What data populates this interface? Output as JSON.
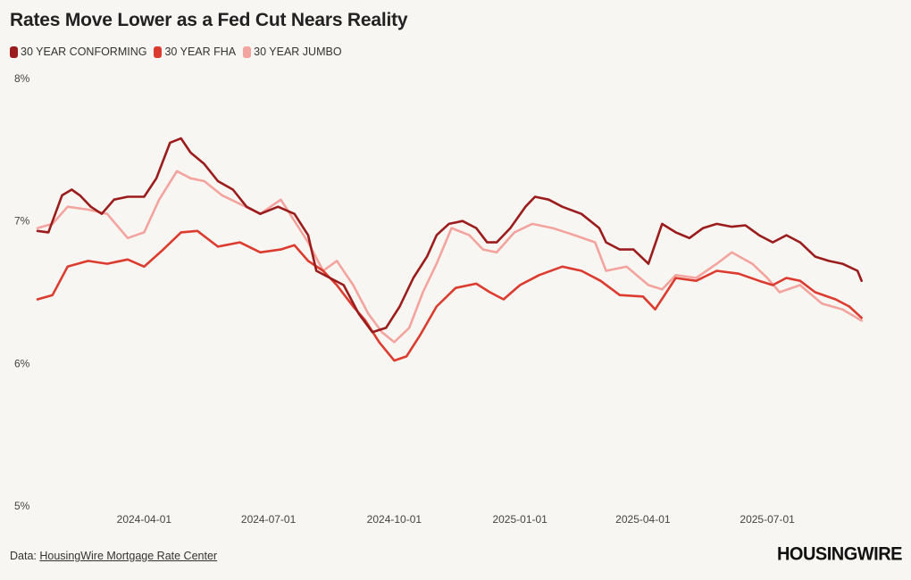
{
  "chart_data": {
    "type": "line",
    "title": "Rates Move Lower as a Fed Cut Nears Reality",
    "ylim": [
      5,
      8
    ],
    "yticks": [
      "5%",
      "6%",
      "7%",
      "8%"
    ],
    "ytick_values": [
      5,
      6,
      7,
      8
    ],
    "xlim": [
      "2024-01-14",
      "2025-09-18"
    ],
    "xticks": [
      "2024-04-01",
      "2024-07-01",
      "2024-10-01",
      "2025-01-01",
      "2025-04-01",
      "2025-07-01"
    ],
    "series": [
      {
        "name": "30 YEAR CONFORMING",
        "color": "#9b1c1c",
        "points": [
          [
            "2024-01-14",
            6.93
          ],
          [
            "2024-01-22",
            6.92
          ],
          [
            "2024-02-01",
            7.18
          ],
          [
            "2024-02-08",
            7.22
          ],
          [
            "2024-02-14",
            7.18
          ],
          [
            "2024-02-22",
            7.1
          ],
          [
            "2024-03-01",
            7.05
          ],
          [
            "2024-03-10",
            7.15
          ],
          [
            "2024-03-20",
            7.17
          ],
          [
            "2024-04-01",
            7.17
          ],
          [
            "2024-04-10",
            7.3
          ],
          [
            "2024-04-20",
            7.55
          ],
          [
            "2024-04-28",
            7.58
          ],
          [
            "2024-05-05",
            7.48
          ],
          [
            "2024-05-15",
            7.4
          ],
          [
            "2024-05-25",
            7.28
          ],
          [
            "2024-06-05",
            7.22
          ],
          [
            "2024-06-15",
            7.1
          ],
          [
            "2024-06-25",
            7.05
          ],
          [
            "2024-07-08",
            7.1
          ],
          [
            "2024-07-20",
            7.05
          ],
          [
            "2024-07-30",
            6.9
          ],
          [
            "2024-08-05",
            6.65
          ],
          [
            "2024-08-15",
            6.6
          ],
          [
            "2024-08-25",
            6.55
          ],
          [
            "2024-09-05",
            6.35
          ],
          [
            "2024-09-15",
            6.22
          ],
          [
            "2024-09-25",
            6.25
          ],
          [
            "2024-10-05",
            6.4
          ],
          [
            "2024-10-15",
            6.6
          ],
          [
            "2024-10-25",
            6.75
          ],
          [
            "2024-11-01",
            6.9
          ],
          [
            "2024-11-10",
            6.98
          ],
          [
            "2024-11-20",
            7.0
          ],
          [
            "2024-11-30",
            6.95
          ],
          [
            "2024-12-08",
            6.85
          ],
          [
            "2024-12-15",
            6.85
          ],
          [
            "2024-12-25",
            6.95
          ],
          [
            "2025-01-05",
            7.1
          ],
          [
            "2025-01-12",
            7.17
          ],
          [
            "2025-01-22",
            7.15
          ],
          [
            "2025-02-01",
            7.1
          ],
          [
            "2025-02-15",
            7.05
          ],
          [
            "2025-02-28",
            6.95
          ],
          [
            "2025-03-05",
            6.85
          ],
          [
            "2025-03-15",
            6.8
          ],
          [
            "2025-03-25",
            6.8
          ],
          [
            "2025-04-05",
            6.7
          ],
          [
            "2025-04-15",
            6.98
          ],
          [
            "2025-04-25",
            6.92
          ],
          [
            "2025-05-05",
            6.88
          ],
          [
            "2025-05-15",
            6.95
          ],
          [
            "2025-05-25",
            6.98
          ],
          [
            "2025-06-05",
            6.96
          ],
          [
            "2025-06-15",
            6.97
          ],
          [
            "2025-06-25",
            6.9
          ],
          [
            "2025-07-05",
            6.85
          ],
          [
            "2025-07-15",
            6.9
          ],
          [
            "2025-07-25",
            6.85
          ],
          [
            "2025-08-05",
            6.75
          ],
          [
            "2025-08-15",
            6.72
          ],
          [
            "2025-08-25",
            6.7
          ],
          [
            "2025-09-05",
            6.65
          ],
          [
            "2025-09-08",
            6.58
          ]
        ]
      },
      {
        "name": "30 YEAR FHA",
        "color": "#dc3b2f",
        "points": [
          [
            "2024-01-14",
            6.45
          ],
          [
            "2024-01-25",
            6.48
          ],
          [
            "2024-02-05",
            6.68
          ],
          [
            "2024-02-20",
            6.72
          ],
          [
            "2024-03-05",
            6.7
          ],
          [
            "2024-03-20",
            6.73
          ],
          [
            "2024-04-01",
            6.68
          ],
          [
            "2024-04-15",
            6.8
          ],
          [
            "2024-04-28",
            6.92
          ],
          [
            "2024-05-10",
            6.93
          ],
          [
            "2024-05-25",
            6.82
          ],
          [
            "2024-06-10",
            6.85
          ],
          [
            "2024-06-25",
            6.78
          ],
          [
            "2024-07-10",
            6.8
          ],
          [
            "2024-07-20",
            6.83
          ],
          [
            "2024-07-30",
            6.72
          ],
          [
            "2024-08-10",
            6.65
          ],
          [
            "2024-08-20",
            6.55
          ],
          [
            "2024-09-01",
            6.4
          ],
          [
            "2024-09-10",
            6.3
          ],
          [
            "2024-09-20",
            6.15
          ],
          [
            "2024-10-01",
            6.02
          ],
          [
            "2024-10-10",
            6.05
          ],
          [
            "2024-10-20",
            6.2
          ],
          [
            "2024-11-01",
            6.4
          ],
          [
            "2024-11-15",
            6.53
          ],
          [
            "2024-11-30",
            6.56
          ],
          [
            "2024-12-10",
            6.5
          ],
          [
            "2024-12-20",
            6.45
          ],
          [
            "2025-01-01",
            6.55
          ],
          [
            "2025-01-15",
            6.62
          ],
          [
            "2025-02-01",
            6.68
          ],
          [
            "2025-02-15",
            6.65
          ],
          [
            "2025-03-01",
            6.58
          ],
          [
            "2025-03-15",
            6.48
          ],
          [
            "2025-04-01",
            6.47
          ],
          [
            "2025-04-10",
            6.38
          ],
          [
            "2025-04-25",
            6.6
          ],
          [
            "2025-05-10",
            6.58
          ],
          [
            "2025-05-25",
            6.65
          ],
          [
            "2025-06-10",
            6.63
          ],
          [
            "2025-06-25",
            6.58
          ],
          [
            "2025-07-05",
            6.55
          ],
          [
            "2025-07-15",
            6.6
          ],
          [
            "2025-07-25",
            6.58
          ],
          [
            "2025-08-05",
            6.5
          ],
          [
            "2025-08-20",
            6.45
          ],
          [
            "2025-08-30",
            6.4
          ],
          [
            "2025-09-08",
            6.32
          ]
        ]
      },
      {
        "name": "30 YEAR JUMBO",
        "color": "#f4a49e",
        "points": [
          [
            "2024-01-14",
            6.95
          ],
          [
            "2024-01-25",
            6.98
          ],
          [
            "2024-02-05",
            7.1
          ],
          [
            "2024-02-20",
            7.08
          ],
          [
            "2024-03-05",
            7.05
          ],
          [
            "2024-03-20",
            6.88
          ],
          [
            "2024-04-01",
            6.92
          ],
          [
            "2024-04-12",
            7.15
          ],
          [
            "2024-04-25",
            7.35
          ],
          [
            "2024-05-05",
            7.3
          ],
          [
            "2024-05-15",
            7.28
          ],
          [
            "2024-05-28",
            7.18
          ],
          [
            "2024-06-10",
            7.12
          ],
          [
            "2024-06-25",
            7.05
          ],
          [
            "2024-07-10",
            7.15
          ],
          [
            "2024-07-20",
            7.0
          ],
          [
            "2024-07-30",
            6.85
          ],
          [
            "2024-08-10",
            6.65
          ],
          [
            "2024-08-20",
            6.72
          ],
          [
            "2024-09-01",
            6.55
          ],
          [
            "2024-09-12",
            6.35
          ],
          [
            "2024-09-22",
            6.22
          ],
          [
            "2024-10-01",
            6.15
          ],
          [
            "2024-10-12",
            6.25
          ],
          [
            "2024-10-22",
            6.5
          ],
          [
            "2024-11-01",
            6.7
          ],
          [
            "2024-11-12",
            6.95
          ],
          [
            "2024-11-25",
            6.9
          ],
          [
            "2024-12-05",
            6.8
          ],
          [
            "2024-12-15",
            6.78
          ],
          [
            "2024-12-28",
            6.92
          ],
          [
            "2025-01-10",
            6.98
          ],
          [
            "2025-01-25",
            6.95
          ],
          [
            "2025-02-10",
            6.9
          ],
          [
            "2025-02-25",
            6.85
          ],
          [
            "2025-03-05",
            6.65
          ],
          [
            "2025-03-20",
            6.68
          ],
          [
            "2025-04-05",
            6.55
          ],
          [
            "2025-04-15",
            6.52
          ],
          [
            "2025-04-25",
            6.62
          ],
          [
            "2025-05-10",
            6.6
          ],
          [
            "2025-05-25",
            6.7
          ],
          [
            "2025-06-05",
            6.78
          ],
          [
            "2025-06-20",
            6.7
          ],
          [
            "2025-07-01",
            6.6
          ],
          [
            "2025-07-10",
            6.5
          ],
          [
            "2025-07-25",
            6.55
          ],
          [
            "2025-08-10",
            6.42
          ],
          [
            "2025-08-25",
            6.38
          ],
          [
            "2025-09-08",
            6.3
          ]
        ]
      }
    ]
  },
  "footer": {
    "prefix": "Data: ",
    "source_link": "HousingWire Mortgage Rate Center",
    "logo": "HOUSINGWIRE"
  }
}
